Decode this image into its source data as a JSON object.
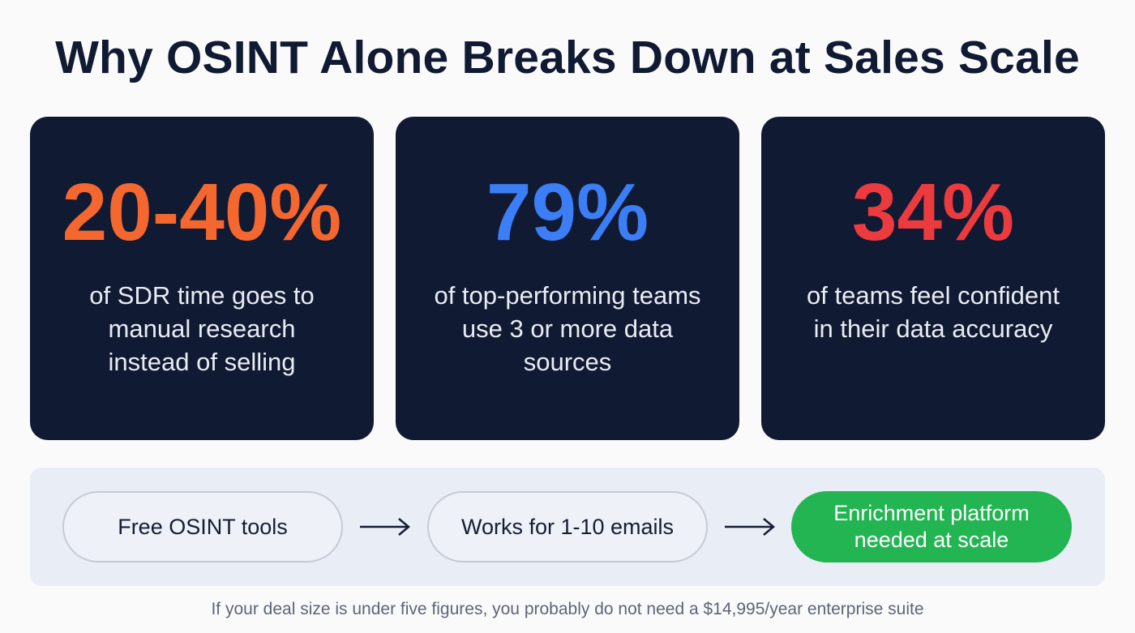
{
  "header": {
    "title": "Why OSINT Alone Breaks Down at Sales Scale"
  },
  "stats": [
    {
      "value": "20-40%",
      "lines": [
        "of SDR time goes to",
        "manual research",
        "instead of selling"
      ],
      "color": "#f4672e"
    },
    {
      "value": "79%",
      "lines": [
        "of top-performing teams",
        "use 3 or more data",
        "sources"
      ],
      "color": "#3b7ef5"
    },
    {
      "value": "34%",
      "lines": [
        "of teams feel confident",
        "in their data accuracy"
      ],
      "color": "#ec3b3f"
    }
  ],
  "flow": {
    "steps": [
      {
        "label": "Free OSINT tools"
      },
      {
        "label": "Works for 1-10 emails"
      },
      {
        "label": "Enrichment platform",
        "label2": "needed at scale"
      }
    ],
    "accent_color": "#22b552"
  },
  "footnote": "If your deal size is under five figures, you probably do not need a $14,995/year enterprise suite"
}
